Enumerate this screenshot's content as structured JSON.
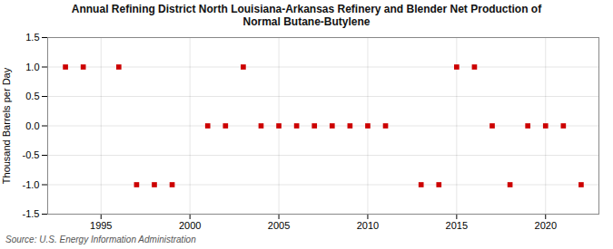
{
  "chart_data": {
    "type": "scatter",
    "title": "Annual Refining District North Louisiana-Arkansas Refinery and Blender Net Production of\nNormal Butane-Butylene",
    "ylabel": "Thousand Barrels per Day",
    "source": "Source: U.S. Energy Information Administration",
    "x": [
      1993,
      1994,
      1996,
      1997,
      1998,
      1999,
      2001,
      2002,
      2003,
      2004,
      2005,
      2006,
      2007,
      2008,
      2009,
      2010,
      2011,
      2013,
      2014,
      2015,
      2016,
      2017,
      2018,
      2019,
      2020,
      2021,
      2022
    ],
    "values": [
      1,
      1,
      1,
      -1,
      -1,
      -1,
      0,
      0,
      1,
      0,
      0,
      0,
      0,
      0,
      0,
      0,
      0,
      -1,
      -1,
      1,
      1,
      0,
      -1,
      0,
      0,
      0,
      -1
    ],
    "color": "#cc0000",
    "marker": "square",
    "xlim": [
      1992,
      2023
    ],
    "ylim": [
      -1.5,
      1.5
    ],
    "xticks": [
      1995,
      2000,
      2005,
      2010,
      2015,
      2020
    ],
    "yticks": [
      -1.5,
      {
        "value": -1,
        "label": "-1.0"
      },
      -0.5,
      {
        "value": 0,
        "label": "0.0"
      },
      0.5,
      {
        "value": 1,
        "label": "1.0"
      },
      1.5
    ],
    "grid": true
  }
}
